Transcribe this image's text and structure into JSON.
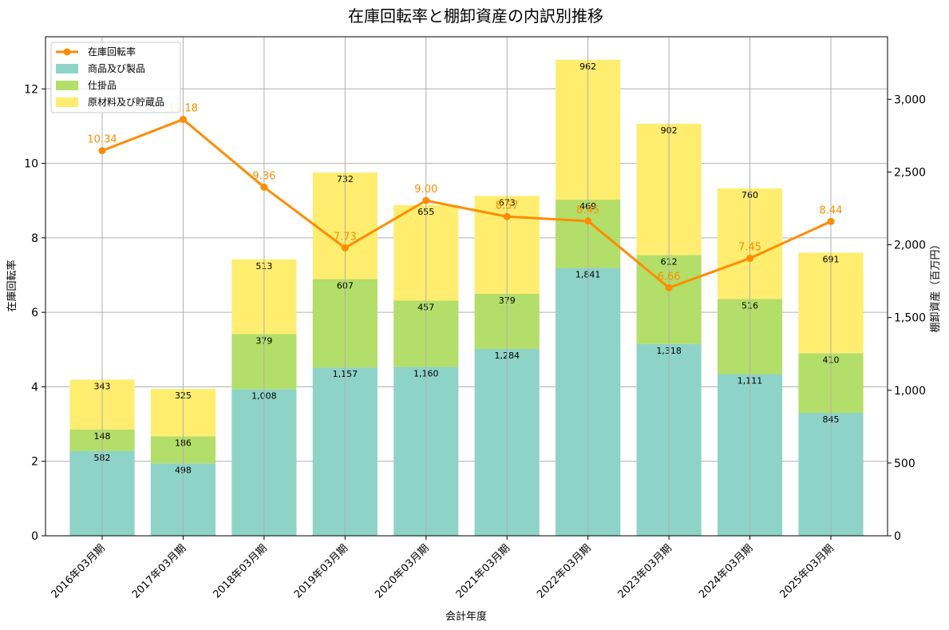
{
  "chart_data": {
    "type": "bar",
    "title": "在庫回転率と棚卸資産の内訳別推移",
    "xlabel": "会計年度",
    "ylabel_left": "在庫回転率",
    "ylabel_right": "棚卸資産（百万円）",
    "categories": [
      "2016年03月期",
      "2017年03月期",
      "2018年03月期",
      "2019年03月期",
      "2020年03月期",
      "2021年03月期",
      "2022年03月期",
      "2023年03月期",
      "2024年03月期",
      "2025年03月期"
    ],
    "series": [
      {
        "name": "商品及び製品",
        "kind": "stacked-bar",
        "axis": "right",
        "color": "#8ed3c7",
        "values": [
          582,
          498,
          1008,
          1157,
          1160,
          1284,
          1841,
          1318,
          1111,
          845
        ],
        "labels": [
          "582",
          "498",
          "1,008",
          "1,157",
          "1,160",
          "1,284",
          "1,841",
          "1,318",
          "1,111",
          "845"
        ]
      },
      {
        "name": "仕掛品",
        "kind": "stacked-bar",
        "axis": "right",
        "color": "#b3de69",
        "values": [
          148,
          186,
          379,
          607,
          457,
          379,
          469,
          612,
          516,
          410
        ],
        "labels": [
          "148",
          "186",
          "379",
          "607",
          "457",
          "379",
          "469",
          "612",
          "516",
          "410"
        ]
      },
      {
        "name": "原材料及び貯蔵品",
        "kind": "stacked-bar",
        "axis": "right",
        "color": "#ffed6f",
        "values": [
          343,
          325,
          513,
          732,
          655,
          673,
          962,
          902,
          760,
          691
        ],
        "labels": [
          "343",
          "325",
          "513",
          "732",
          "655",
          "673",
          "962",
          "902",
          "760",
          "691"
        ]
      },
      {
        "name": "在庫回転率",
        "kind": "line",
        "axis": "left",
        "color": "#ff8c00",
        "values": [
          10.34,
          11.18,
          9.36,
          7.73,
          9.0,
          8.57,
          8.45,
          6.66,
          7.45,
          8.44
        ],
        "labels": [
          "10.34",
          "11.18",
          "9.36",
          "7.73",
          "9.00",
          "8.57",
          "8.45",
          "6.66",
          "7.45",
          "8.44"
        ]
      }
    ],
    "ylim_left": [
      0,
      13.4
    ],
    "ylim_right": [
      0,
      3430
    ],
    "yticks_left": [
      0,
      2,
      4,
      6,
      8,
      10,
      12
    ],
    "yticks_left_labels": [
      "0",
      "2",
      "4",
      "6",
      "8",
      "10",
      "12"
    ],
    "yticks_right": [
      0,
      500,
      1000,
      1500,
      2000,
      2500,
      3000
    ],
    "yticks_right_labels": [
      "0",
      "500",
      "1,000",
      "1,500",
      "2,000",
      "2,500",
      "3,000"
    ],
    "grid": true,
    "legend_position": "top-left"
  }
}
